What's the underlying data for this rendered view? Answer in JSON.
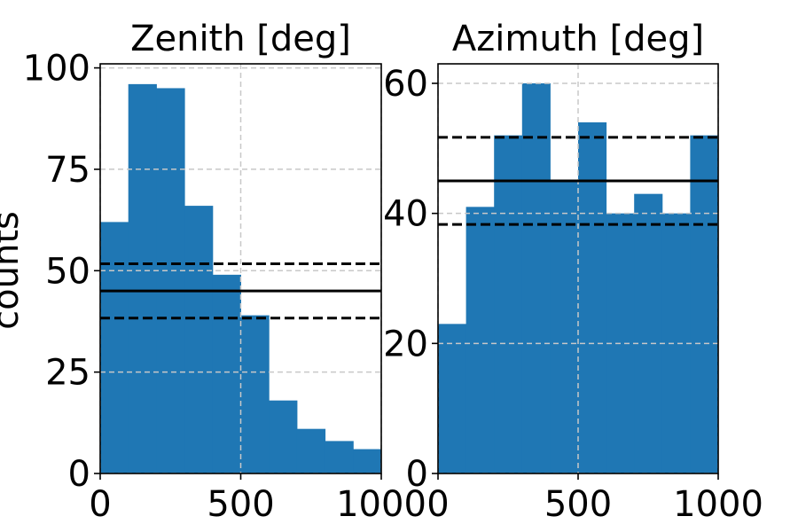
{
  "figure": {
    "ylabel": "counts"
  },
  "chart_data": [
    {
      "type": "bar",
      "title": "Zenith [deg]",
      "xlim": [
        0,
        1000
      ],
      "ylim": [
        0,
        101
      ],
      "xticks": [
        0,
        500,
        1000
      ],
      "yticks": [
        0,
        25,
        50,
        75,
        100
      ],
      "grid": true,
      "bin_edges": [
        0,
        100,
        200,
        300,
        400,
        500,
        600,
        700,
        800,
        900,
        1000
      ],
      "values": [
        62,
        96,
        95,
        66,
        49,
        39,
        18,
        11,
        8,
        6
      ],
      "bar_color": "#1f77b4",
      "hlines": {
        "mean": 45,
        "lower": 38.3,
        "upper": 51.7
      }
    },
    {
      "type": "bar",
      "title": "Azimuth [deg]",
      "xlim": [
        0,
        1000
      ],
      "ylim": [
        0,
        63
      ],
      "xticks": [
        0,
        500,
        1000
      ],
      "yticks": [
        0,
        20,
        40,
        60
      ],
      "grid": true,
      "bin_edges": [
        0,
        100,
        200,
        300,
        400,
        500,
        600,
        700,
        800,
        900,
        1000
      ],
      "values": [
        23,
        41,
        52,
        60,
        45,
        54,
        40,
        43,
        40,
        52
      ],
      "bar_color": "#1f77b4",
      "hlines": {
        "mean": 45,
        "lower": 38.3,
        "upper": 51.7
      }
    }
  ]
}
